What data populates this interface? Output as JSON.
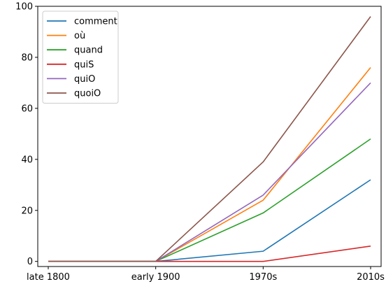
{
  "chart_data": {
    "type": "line",
    "title": "",
    "xlabel": "",
    "ylabel": "",
    "categories": [
      "late 1800",
      "early 1900",
      "1970s",
      "2010s"
    ],
    "ylim": [
      -2,
      100
    ],
    "yticks": [
      0,
      20,
      40,
      60,
      80,
      100
    ],
    "grid": false,
    "legend_position": "top-left",
    "series": [
      {
        "name": "comment",
        "color": "#1f77b4",
        "values": [
          0,
          0,
          4,
          32
        ]
      },
      {
        "name": "où",
        "color": "#ff7f0e",
        "values": [
          0,
          0,
          24,
          76
        ]
      },
      {
        "name": "quand",
        "color": "#2ca02c",
        "values": [
          0,
          0,
          19,
          48
        ]
      },
      {
        "name": "quiS",
        "color": "#d62728",
        "values": [
          0,
          0,
          0,
          6
        ]
      },
      {
        "name": "quiO",
        "color": "#9467bd",
        "values": [
          0,
          0,
          26,
          70
        ]
      },
      {
        "name": "quoiO",
        "color": "#8c564b",
        "values": [
          0,
          0,
          39,
          96
        ]
      }
    ]
  }
}
